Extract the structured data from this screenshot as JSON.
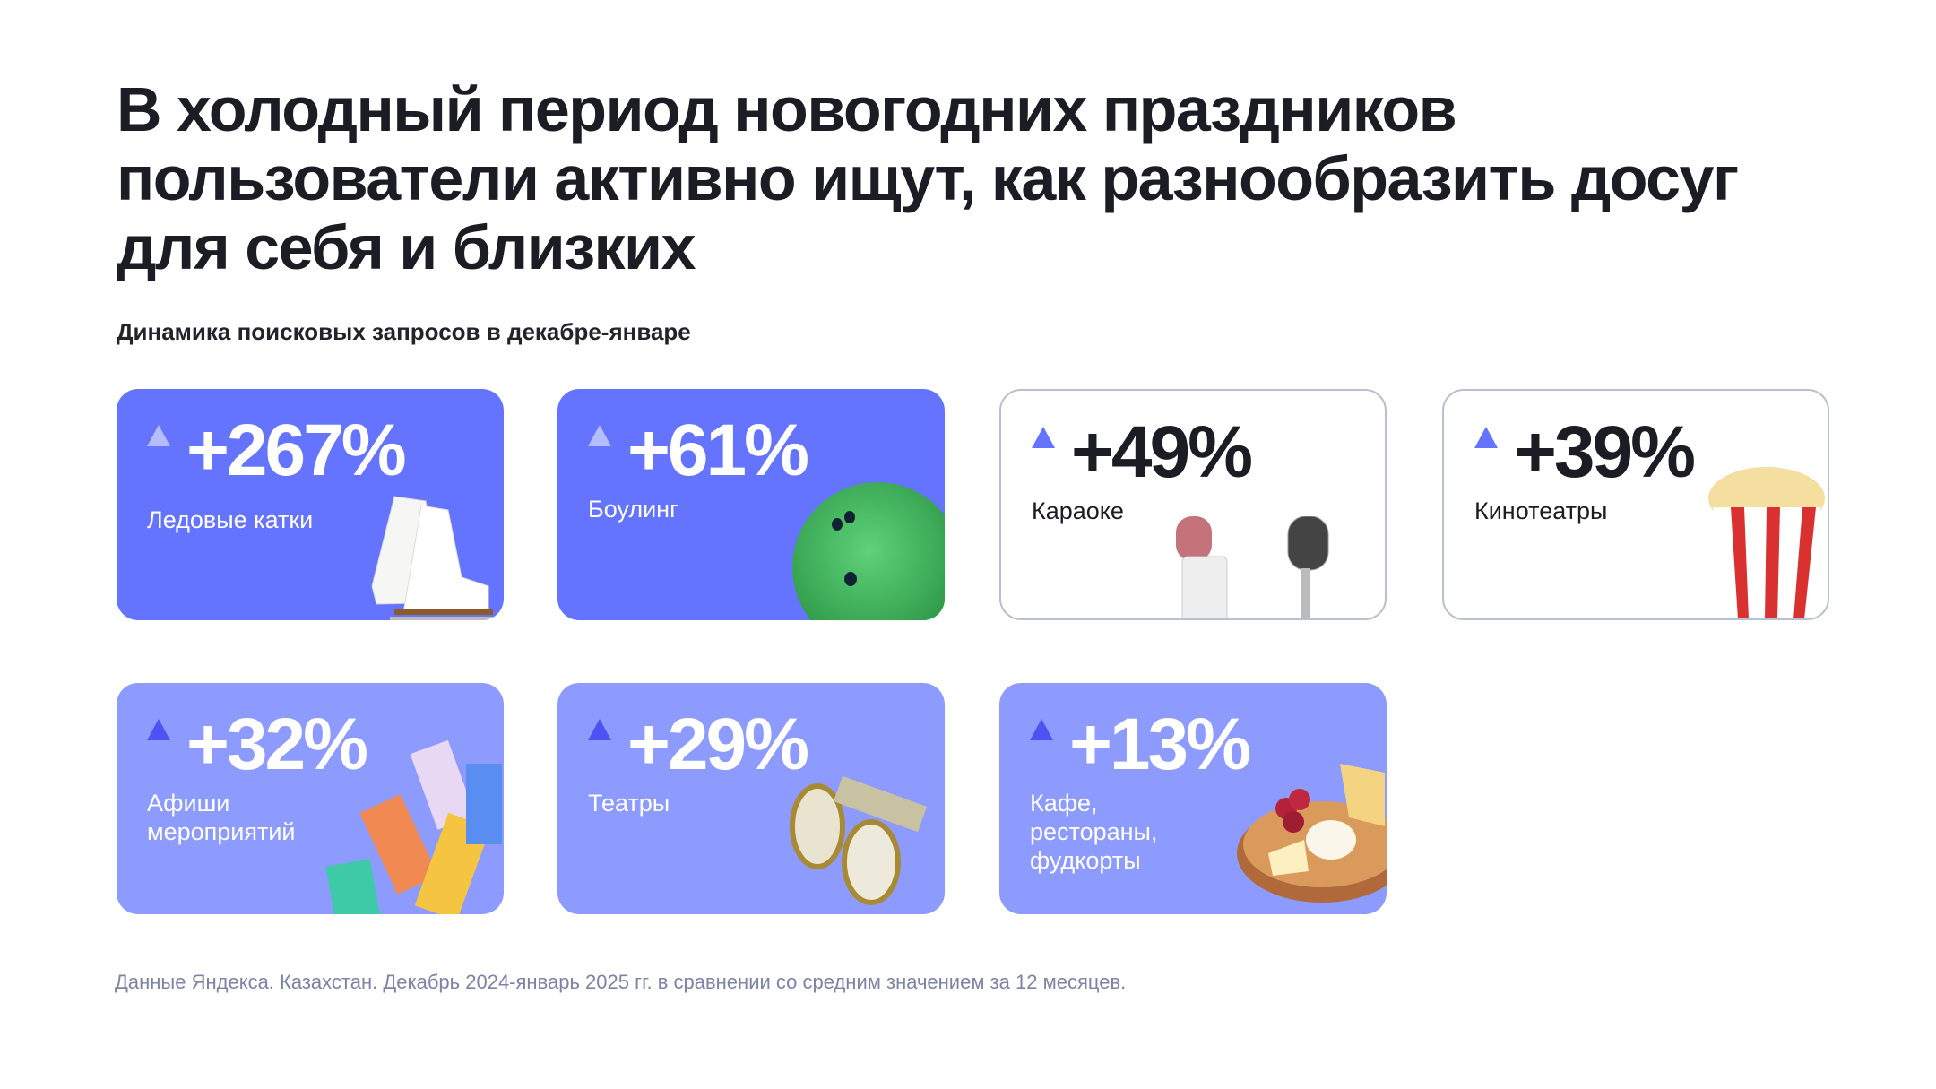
{
  "title": "В холодный период новогодних праздников пользователи активно ищут, как разнообразить досуг для себя и близких",
  "subtitle": "Динамика поисковых запросов в декабре-январе",
  "cards": [
    {
      "value": "+267%",
      "label": "Ледовые катки",
      "icon": "ice-skates",
      "style": "dark"
    },
    {
      "value": "+61%",
      "label": "Боулинг",
      "icon": "bowling-ball",
      "style": "dark"
    },
    {
      "value": "+49%",
      "label": "Караоке",
      "icon": "microphones",
      "style": "outline"
    },
    {
      "value": "+39%",
      "label": "Кинотеатры",
      "icon": "popcorn",
      "style": "outline"
    },
    {
      "value": "+32%",
      "label": "Афиши мероприятий",
      "icon": "tickets",
      "style": "light"
    },
    {
      "value": "+29%",
      "label": "Театры",
      "icon": "binoculars",
      "style": "light"
    },
    {
      "value": "+13%",
      "label": "Кафе, рестораны, фудкорты",
      "icon": "cheese-plate",
      "style": "light"
    }
  ],
  "footnote": "Данные Яндекса. Казахстан. Декабрь 2024-январь 2025 гг. в сравнении со средним значением за 12 месяцев.",
  "colors": {
    "dark_card": "#6574fe",
    "light_card": "#8d9bfe",
    "outline": "#b9c0cf",
    "footnote": "#7c83a3"
  }
}
